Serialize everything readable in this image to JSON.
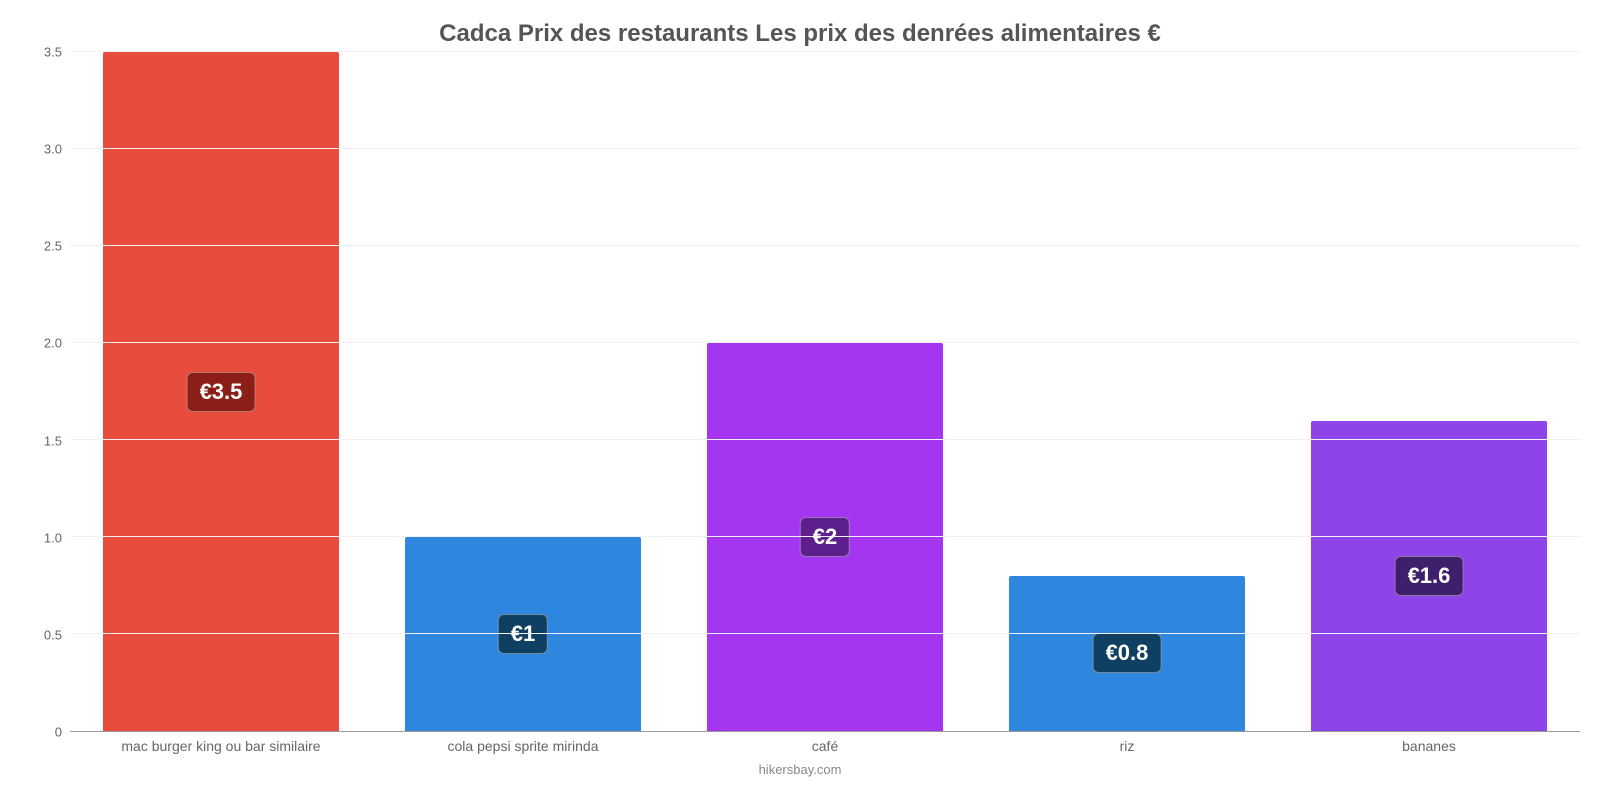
{
  "chart": {
    "type": "bar",
    "title": "Cadca Prix des restaurants Les prix des denrées alimentaires €",
    "title_fontsize": 24,
    "title_color": "#555555",
    "background_color": "#ffffff",
    "grid_color": "#f1f1f1",
    "axis_color": "#999999",
    "tick_color": "#666666",
    "tick_fontsize": 13,
    "xlabel_fontsize": 14,
    "ylim": [
      0,
      3.5
    ],
    "yticks": [
      0,
      0.5,
      1.0,
      1.5,
      2.0,
      2.5,
      3.0,
      3.5
    ],
    "ytick_labels": [
      "0",
      "0.5",
      "1.0",
      "1.5",
      "2.0",
      "2.5",
      "3.0",
      "3.5"
    ],
    "currency_prefix": "€",
    "bar_width": 0.78,
    "categories": [
      "mac burger king ou bar similaire",
      "cola pepsi sprite mirinda",
      "café",
      "riz",
      "bananes"
    ],
    "values": [
      3.5,
      1,
      2,
      0.8,
      1.6
    ],
    "value_labels": [
      "€3.5",
      "€1",
      "€2",
      "€0.8",
      "€1.6"
    ],
    "bar_colors": [
      "#e74c3c",
      "#2e86de",
      "#a435f0",
      "#2e86de",
      "#8e44e8"
    ],
    "badge_colors": [
      "#8b1f17",
      "#0f3f61",
      "#5d1f8b",
      "#0f3f61",
      "#3e1f6b"
    ],
    "badge_fontsize": 22,
    "badge_text_color": "#ffffff",
    "footer": "hikersbay.com",
    "footer_color": "#888888",
    "footer_fontsize": 13
  }
}
